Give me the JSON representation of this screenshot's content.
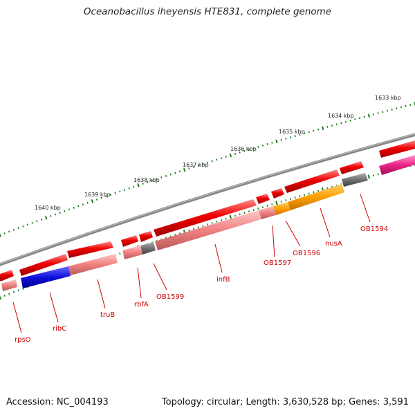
{
  "title": "Oceanobacillus iheyensis HTE831, complete genome",
  "accession_text": "Accession: NC_004193",
  "topology_text": "Topology: circular; Length: 3,630,528 bp; Genes: 3,591",
  "ruler_labels": [
    "1633 kbp",
    "1634 kbp",
    "1635 kbp",
    "1636 kbp",
    "1637 kbp",
    "1638 kbp",
    "1639 kbp",
    "1640 kbp"
  ],
  "gene_labels": [
    "rpsO",
    "ribC",
    "truB",
    "rbfA",
    "OB1599",
    "infB",
    "OB1597",
    "OB1596",
    "nusA",
    "OB1594"
  ],
  "colors": {
    "gene": "#ee0000",
    "cds_default": "#f08080",
    "ribC": "#1010dd",
    "OB1599": "#707070",
    "OB1596": "#ffa000",
    "OB1594": "#707070",
    "right_edge_cds": "#ee2288",
    "backbone": "#888888",
    "ticks": "#1a7a1a",
    "label": "#cc0000"
  }
}
